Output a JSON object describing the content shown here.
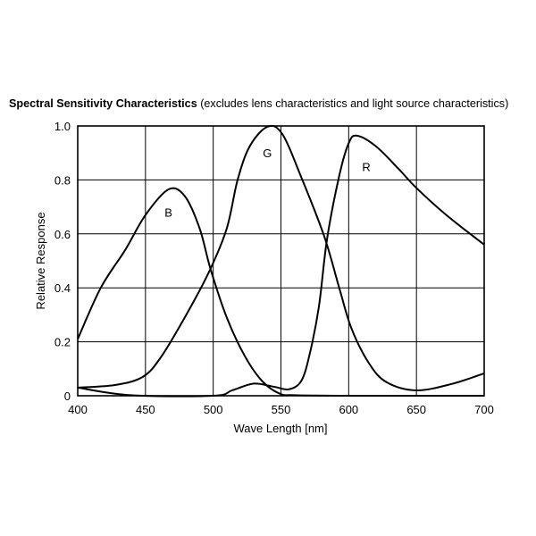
{
  "chart_data": {
    "type": "line",
    "title": "Spectral Sensitivity Characteristics",
    "subtitle": "(excludes lens characteristics and light source characteristics)",
    "xlabel": "Wave Length [nm]",
    "ylabel": "Relative Response",
    "xlim": [
      400,
      700
    ],
    "ylim": [
      0,
      1.0
    ],
    "xticks": [
      "400",
      "450",
      "500",
      "550",
      "600",
      "650",
      "700"
    ],
    "xtick_values": [
      400,
      450,
      500,
      550,
      600,
      650,
      700
    ],
    "yticks": [
      "0",
      "0.2",
      "0.4",
      "0.6",
      "0.8",
      "1.0"
    ],
    "ytick_values": [
      0,
      0.2,
      0.4,
      0.6,
      0.8,
      1.0
    ],
    "grid": true,
    "series": [
      {
        "name": "B",
        "label_at": [
          467,
          0.68
        ],
        "x": [
          400,
          417,
          435,
          450,
          467,
          479,
          490,
          498,
          510,
          523,
          536,
          549,
          560,
          600,
          700
        ],
        "y": [
          0.21,
          0.4,
          0.54,
          0.67,
          0.765,
          0.74,
          0.62,
          0.47,
          0.29,
          0.15,
          0.055,
          0.008,
          0.002,
          0.0,
          0.0
        ]
      },
      {
        "name": "G",
        "label_at": [
          540,
          0.9
        ],
        "x": [
          400,
          428,
          448,
          461,
          479,
          497,
          510,
          518,
          527,
          540,
          551,
          565,
          582,
          593,
          602,
          615,
          628,
          650,
          677,
          700
        ],
        "y": [
          0.03,
          0.04,
          0.07,
          0.14,
          0.29,
          0.46,
          0.62,
          0.8,
          0.925,
          0.997,
          0.97,
          0.81,
          0.59,
          0.4,
          0.25,
          0.12,
          0.05,
          0.02,
          0.045,
          0.083
        ]
      },
      {
        "name": "R",
        "label_at": [
          613,
          0.85
        ],
        "x": [
          400,
          439,
          500,
          514,
          530,
          545,
          556,
          565,
          571,
          578,
          584,
          593,
          600,
          606,
          620,
          637,
          650,
          672,
          700
        ],
        "y": [
          0.03,
          0.002,
          0.0,
          0.02,
          0.045,
          0.033,
          0.024,
          0.055,
          0.15,
          0.33,
          0.58,
          0.815,
          0.936,
          0.964,
          0.925,
          0.84,
          0.77,
          0.67,
          0.56
        ]
      }
    ]
  }
}
